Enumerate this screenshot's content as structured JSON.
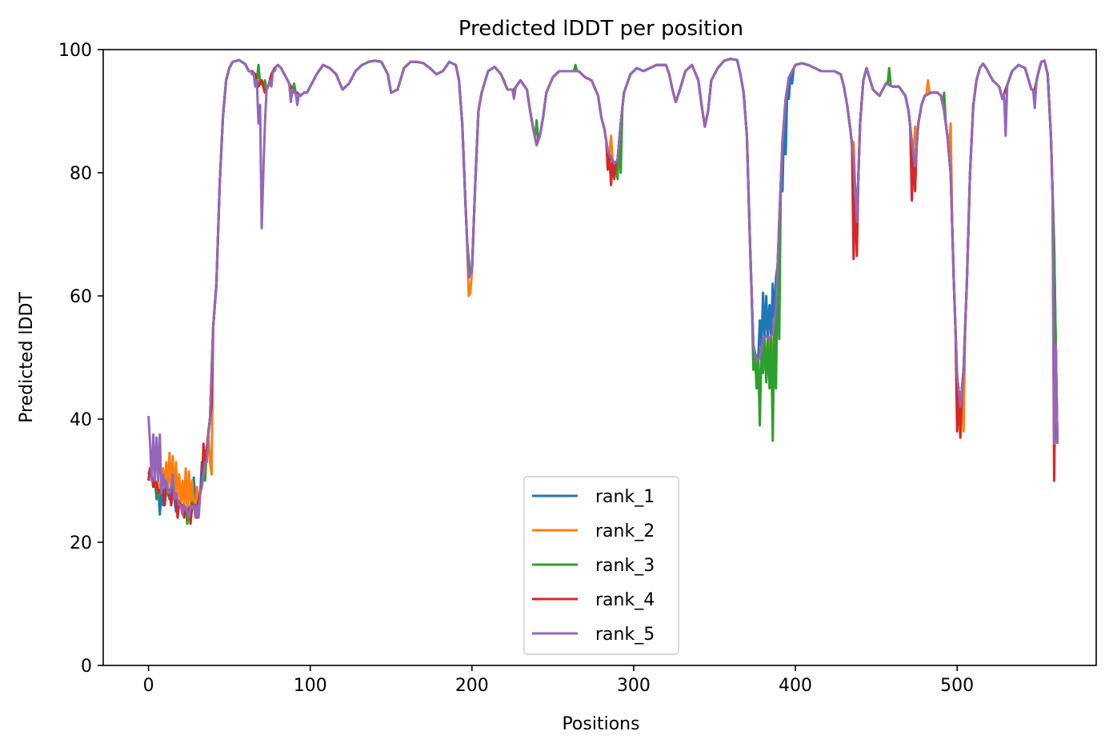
{
  "chart_data": {
    "type": "line",
    "title": "Predicted lDDT per position",
    "xlabel": "Positions",
    "ylabel": "Predicted lDDT",
    "xlim": [
      -28,
      586
    ],
    "ylim": [
      0,
      100
    ],
    "xticks": [
      0,
      100,
      200,
      300,
      400,
      500
    ],
    "yticks": [
      0,
      20,
      40,
      60,
      80,
      100
    ],
    "grid": false,
    "legend_position": "lower center",
    "base_profile": [
      [
        0,
        33
      ],
      [
        2,
        31
      ],
      [
        4,
        30
      ],
      [
        6,
        29
      ],
      [
        8,
        28
      ],
      [
        10,
        29
      ],
      [
        12,
        28
      ],
      [
        14,
        29
      ],
      [
        16,
        27
      ],
      [
        18,
        27
      ],
      [
        20,
        26
      ],
      [
        22,
        26
      ],
      [
        24,
        25
      ],
      [
        26,
        26
      ],
      [
        28,
        26
      ],
      [
        30,
        26
      ],
      [
        32,
        28
      ],
      [
        34,
        31
      ],
      [
        36,
        35
      ],
      [
        38,
        40
      ],
      [
        40,
        55
      ],
      [
        42,
        62
      ],
      [
        44,
        78
      ],
      [
        46,
        89
      ],
      [
        48,
        95
      ],
      [
        50,
        97
      ],
      [
        52,
        98
      ],
      [
        56,
        98.3
      ],
      [
        60,
        97.6
      ],
      [
        62,
        96.5
      ],
      [
        64,
        96.5
      ],
      [
        66,
        96
      ],
      [
        68,
        94
      ],
      [
        70,
        95
      ],
      [
        72,
        93
      ],
      [
        74,
        94
      ],
      [
        76,
        96
      ],
      [
        78,
        97
      ],
      [
        80,
        97.5
      ],
      [
        82,
        97
      ],
      [
        84,
        96
      ],
      [
        86,
        95
      ],
      [
        88,
        94
      ],
      [
        90,
        93
      ],
      [
        92,
        93
      ],
      [
        94,
        92.5
      ],
      [
        96,
        93
      ],
      [
        98,
        93
      ],
      [
        100,
        94
      ],
      [
        104,
        96
      ],
      [
        108,
        97.5
      ],
      [
        112,
        97
      ],
      [
        116,
        96
      ],
      [
        120,
        93.5
      ],
      [
        124,
        94.5
      ],
      [
        128,
        96.5
      ],
      [
        132,
        97.5
      ],
      [
        136,
        98
      ],
      [
        140,
        98.2
      ],
      [
        144,
        98
      ],
      [
        148,
        96
      ],
      [
        150,
        93
      ],
      [
        154,
        93.5
      ],
      [
        158,
        97
      ],
      [
        162,
        98
      ],
      [
        166,
        98
      ],
      [
        170,
        97.8
      ],
      [
        174,
        97
      ],
      [
        178,
        96
      ],
      [
        182,
        96.5
      ],
      [
        186,
        98
      ],
      [
        190,
        97.5
      ],
      [
        192,
        95
      ],
      [
        194,
        88
      ],
      [
        196,
        75
      ],
      [
        198,
        63
      ],
      [
        200,
        64
      ],
      [
        202,
        78
      ],
      [
        204,
        90
      ],
      [
        206,
        93
      ],
      [
        210,
        96.5
      ],
      [
        214,
        97.2
      ],
      [
        218,
        96
      ],
      [
        222,
        93.5
      ],
      [
        226,
        93.5
      ],
      [
        230,
        95
      ],
      [
        234,
        93.5
      ],
      [
        236,
        90
      ],
      [
        238,
        87
      ],
      [
        240,
        84.5
      ],
      [
        242,
        86
      ],
      [
        244,
        89
      ],
      [
        246,
        93
      ],
      [
        250,
        95.5
      ],
      [
        254,
        96.5
      ],
      [
        258,
        96.5
      ],
      [
        262,
        96.5
      ],
      [
        266,
        96.5
      ],
      [
        270,
        95.5
      ],
      [
        274,
        95
      ],
      [
        278,
        92.5
      ],
      [
        280,
        89
      ],
      [
        282,
        87
      ],
      [
        284,
        83.5
      ],
      [
        286,
        82.5
      ],
      [
        288,
        81.5
      ],
      [
        290,
        82
      ],
      [
        292,
        88
      ],
      [
        294,
        93
      ],
      [
        298,
        96
      ],
      [
        302,
        97
      ],
      [
        306,
        96.5
      ],
      [
        310,
        97
      ],
      [
        314,
        97.5
      ],
      [
        318,
        97.5
      ],
      [
        320,
        97.5
      ],
      [
        322,
        96
      ],
      [
        324,
        93.5
      ],
      [
        326,
        91.5
      ],
      [
        328,
        93
      ],
      [
        332,
        96.5
      ],
      [
        336,
        97.5
      ],
      [
        340,
        95
      ],
      [
        342,
        91
      ],
      [
        344,
        87.5
      ],
      [
        346,
        90
      ],
      [
        348,
        95
      ],
      [
        352,
        97
      ],
      [
        356,
        98.2
      ],
      [
        360,
        98.5
      ],
      [
        364,
        98.3
      ],
      [
        366,
        96
      ],
      [
        368,
        93
      ],
      [
        370,
        86
      ],
      [
        372,
        68
      ],
      [
        374,
        52
      ],
      [
        376,
        49.5
      ],
      [
        378,
        50
      ],
      [
        380,
        53
      ],
      [
        382,
        53.5
      ],
      [
        384,
        53
      ],
      [
        386,
        54
      ],
      [
        388,
        58
      ],
      [
        390,
        72
      ],
      [
        392,
        85
      ],
      [
        394,
        92
      ],
      [
        396,
        95.5
      ],
      [
        400,
        97.5
      ],
      [
        404,
        97.8
      ],
      [
        408,
        97.5
      ],
      [
        412,
        97
      ],
      [
        416,
        96.5
      ],
      [
        420,
        96.5
      ],
      [
        424,
        96.5
      ],
      [
        428,
        96
      ],
      [
        430,
        94
      ],
      [
        432,
        91
      ],
      [
        434,
        87
      ],
      [
        436,
        82
      ],
      [
        438,
        72
      ],
      [
        440,
        88
      ],
      [
        442,
        95
      ],
      [
        444,
        97
      ],
      [
        448,
        93.5
      ],
      [
        452,
        92.5
      ],
      [
        456,
        94.5
      ],
      [
        460,
        94
      ],
      [
        464,
        94
      ],
      [
        468,
        92.5
      ],
      [
        470,
        90
      ],
      [
        472,
        85
      ],
      [
        474,
        81
      ],
      [
        476,
        88
      ],
      [
        478,
        91
      ],
      [
        480,
        92.5
      ],
      [
        484,
        93
      ],
      [
        488,
        93
      ],
      [
        490,
        92.5
      ],
      [
        492,
        90
      ],
      [
        494,
        86
      ],
      [
        496,
        80
      ],
      [
        498,
        62
      ],
      [
        500,
        47
      ],
      [
        502,
        42
      ],
      [
        504,
        48
      ],
      [
        506,
        62
      ],
      [
        508,
        80
      ],
      [
        510,
        91
      ],
      [
        512,
        95
      ],
      [
        514,
        97
      ],
      [
        516,
        97.7
      ],
      [
        518,
        97
      ],
      [
        522,
        95
      ],
      [
        526,
        94
      ],
      [
        528,
        92
      ],
      [
        530,
        93.5
      ],
      [
        534,
        96.5
      ],
      [
        538,
        97.5
      ],
      [
        542,
        97
      ],
      [
        546,
        93.5
      ],
      [
        548,
        93.5
      ],
      [
        550,
        96
      ],
      [
        552,
        98
      ],
      [
        554,
        98.2
      ],
      [
        556,
        96
      ],
      [
        558,
        86
      ],
      [
        560,
        68
      ],
      [
        562,
        36
      ]
    ],
    "series": [
      {
        "name": "rank_1",
        "color": "#1f77b4",
        "values": [
          [
            0,
            31
          ],
          [
            3,
            29
          ],
          [
            5,
            27
          ],
          [
            7,
            24.5
          ],
          [
            9,
            26
          ],
          [
            13,
            27
          ],
          [
            17,
            25
          ],
          [
            21,
            25
          ],
          [
            25,
            25.5
          ],
          [
            28,
            30.5
          ],
          [
            33,
            33
          ],
          [
            376,
            50
          ],
          [
            378,
            56
          ],
          [
            380,
            60.5
          ],
          [
            382,
            60
          ],
          [
            384,
            58.5
          ],
          [
            386,
            62
          ],
          [
            388,
            63
          ],
          [
            390,
            70
          ],
          [
            392,
            77
          ],
          [
            394,
            83
          ],
          [
            396,
            92
          ],
          [
            398,
            94.5
          ]
        ]
      },
      {
        "name": "rank_2",
        "color": "#ff7f0e",
        "values": [
          [
            0,
            32
          ],
          [
            3,
            30
          ],
          [
            6,
            30
          ],
          [
            9,
            32
          ],
          [
            11,
            33
          ],
          [
            13,
            34.5
          ],
          [
            15,
            34
          ],
          [
            17,
            33
          ],
          [
            19,
            31
          ],
          [
            21,
            30
          ],
          [
            23,
            32
          ],
          [
            25,
            31.5
          ],
          [
            27,
            30
          ],
          [
            30,
            29
          ],
          [
            34,
            31
          ],
          [
            38,
            33
          ],
          [
            39,
            31
          ],
          [
            198,
            60
          ],
          [
            199,
            60.5
          ],
          [
            220,
            95
          ],
          [
            226,
            92.5
          ],
          [
            286,
            86
          ],
          [
            380,
            50
          ],
          [
            384,
            51
          ],
          [
            386,
            46
          ],
          [
            388,
            52
          ],
          [
            436,
            85
          ],
          [
            474,
            87.5
          ],
          [
            482,
            95
          ],
          [
            496,
            88
          ],
          [
            502,
            37
          ],
          [
            504,
            38
          ]
        ]
      },
      {
        "name": "rank_3",
        "color": "#2ca02c",
        "values": [
          [
            0,
            30
          ],
          [
            3,
            29
          ],
          [
            6,
            27
          ],
          [
            10,
            28
          ],
          [
            14,
            27
          ],
          [
            18,
            26
          ],
          [
            21,
            25
          ],
          [
            24,
            23
          ],
          [
            27,
            26.5
          ],
          [
            31,
            25
          ],
          [
            35,
            30
          ],
          [
            60,
            97.5
          ],
          [
            68,
            97.5
          ],
          [
            70,
            94.5
          ],
          [
            72,
            95
          ],
          [
            90,
            94.5
          ],
          [
            198,
            66
          ],
          [
            240,
            88.5
          ],
          [
            264,
            97.5
          ],
          [
            290,
            79
          ],
          [
            292,
            80
          ],
          [
            374,
            48
          ],
          [
            376,
            45
          ],
          [
            378,
            39
          ],
          [
            380,
            47.5
          ],
          [
            382,
            46
          ],
          [
            384,
            45
          ],
          [
            386,
            36.5
          ],
          [
            388,
            45
          ],
          [
            390,
            53
          ],
          [
            436,
            80
          ],
          [
            458,
            97
          ],
          [
            472,
            80
          ],
          [
            492,
            93
          ]
        ]
      },
      {
        "name": "rank_4",
        "color": "#d62728",
        "values": [
          [
            0,
            30
          ],
          [
            3,
            29
          ],
          [
            6,
            28
          ],
          [
            10,
            26
          ],
          [
            14,
            26
          ],
          [
            18,
            24
          ],
          [
            22,
            24
          ],
          [
            26,
            23
          ],
          [
            30,
            24
          ],
          [
            34,
            36
          ],
          [
            37,
            38
          ],
          [
            39,
            42
          ],
          [
            284,
            80.5
          ],
          [
            286,
            78
          ],
          [
            288,
            79
          ],
          [
            436,
            66
          ],
          [
            438,
            66.5
          ],
          [
            472,
            75.5
          ],
          [
            474,
            77
          ],
          [
            500,
            38
          ],
          [
            502,
            37
          ],
          [
            560,
            30
          ]
        ]
      },
      {
        "name": "rank_5",
        "color": "#9467bd",
        "values": [
          [
            0,
            40.5
          ],
          [
            1,
            36
          ],
          [
            2,
            30
          ],
          [
            3,
            37.5
          ],
          [
            5,
            37
          ],
          [
            6,
            30
          ],
          [
            7,
            37.5
          ],
          [
            9,
            31
          ],
          [
            11,
            30
          ],
          [
            13,
            28
          ],
          [
            15,
            31
          ],
          [
            17,
            28
          ],
          [
            19,
            26
          ],
          [
            21,
            24.5
          ],
          [
            23,
            25.5
          ],
          [
            25,
            24
          ],
          [
            27,
            25.5
          ],
          [
            29,
            24
          ],
          [
            31,
            24
          ],
          [
            33,
            29
          ],
          [
            36,
            33
          ],
          [
            64,
            96
          ],
          [
            66,
            94
          ],
          [
            68,
            88
          ],
          [
            69,
            91
          ],
          [
            70,
            71
          ],
          [
            71,
            80
          ],
          [
            72,
            88
          ],
          [
            76,
            94
          ],
          [
            78,
            96.5
          ],
          [
            88,
            91.5
          ],
          [
            92,
            91
          ],
          [
            226,
            92
          ],
          [
            530,
            86
          ],
          [
            548,
            90.5
          ],
          [
            560,
            36
          ]
        ]
      }
    ]
  }
}
